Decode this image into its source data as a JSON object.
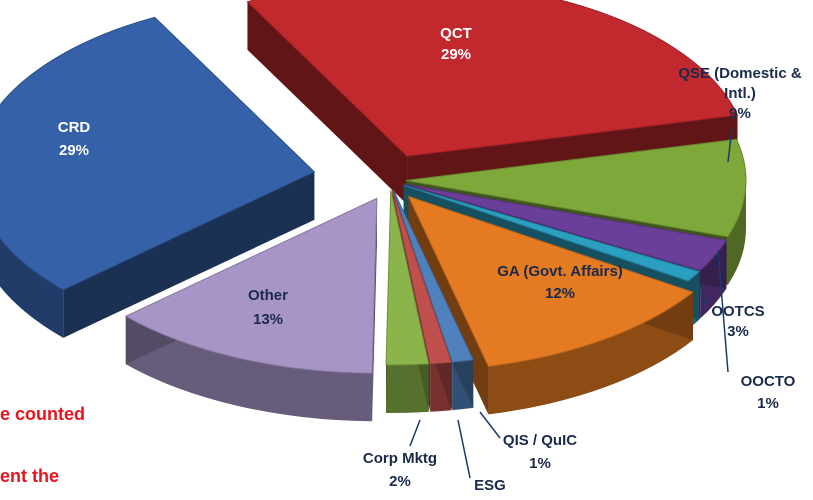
{
  "chart_data": {
    "type": "pie",
    "title": "",
    "style": "exploded-3d",
    "slices": [
      {
        "label": "QCT",
        "value": 29,
        "color": "#c2292e"
      },
      {
        "label": "QSE (Domestic & Intl.)",
        "value": 9,
        "color": "#7fa83a"
      },
      {
        "label": "OOTCS",
        "value": 3,
        "color": "#6a3f9a"
      },
      {
        "label": "OOCTO",
        "value": 1,
        "color": "#2b9fc0"
      },
      {
        "label": "GA (Govt. Affairs)",
        "value": 12,
        "color": "#e47a21"
      },
      {
        "label": "QIS / QuIC",
        "value": 1,
        "color": "#4f81bd"
      },
      {
        "label": "ESG",
        "value": 1,
        "color": "#c0504d"
      },
      {
        "label": "Corp Mktg",
        "value": 2,
        "color": "#8bb54a"
      },
      {
        "label": "Other",
        "value": 13,
        "color": "#a795c8"
      },
      {
        "label": "CRD",
        "value": 29,
        "color": "#3561a8"
      }
    ],
    "slice_labels": {
      "qct": {
        "name": "QCT",
        "pct": "29%"
      },
      "qse": {
        "name1": "QSE (Domestic &",
        "name2": "Intl.)",
        "pct": "9%"
      },
      "ootcs": {
        "name": "OOTCS",
        "pct": "3%"
      },
      "oocto": {
        "name": "OOCTO",
        "pct": "1%"
      },
      "ga": {
        "name": "GA (Govt. Affairs)",
        "pct": "12%"
      },
      "qis": {
        "name": "QIS / QuIC",
        "pct": "1%"
      },
      "esg": {
        "name": "ESG"
      },
      "corp": {
        "name": "Corp Mktg",
        "pct": "2%"
      },
      "other": {
        "name": "Other",
        "pct": "13%"
      },
      "crd": {
        "name": "CRD",
        "pct": "29%"
      }
    }
  },
  "notes": {
    "line1": "e counted",
    "line2": "ent the"
  }
}
